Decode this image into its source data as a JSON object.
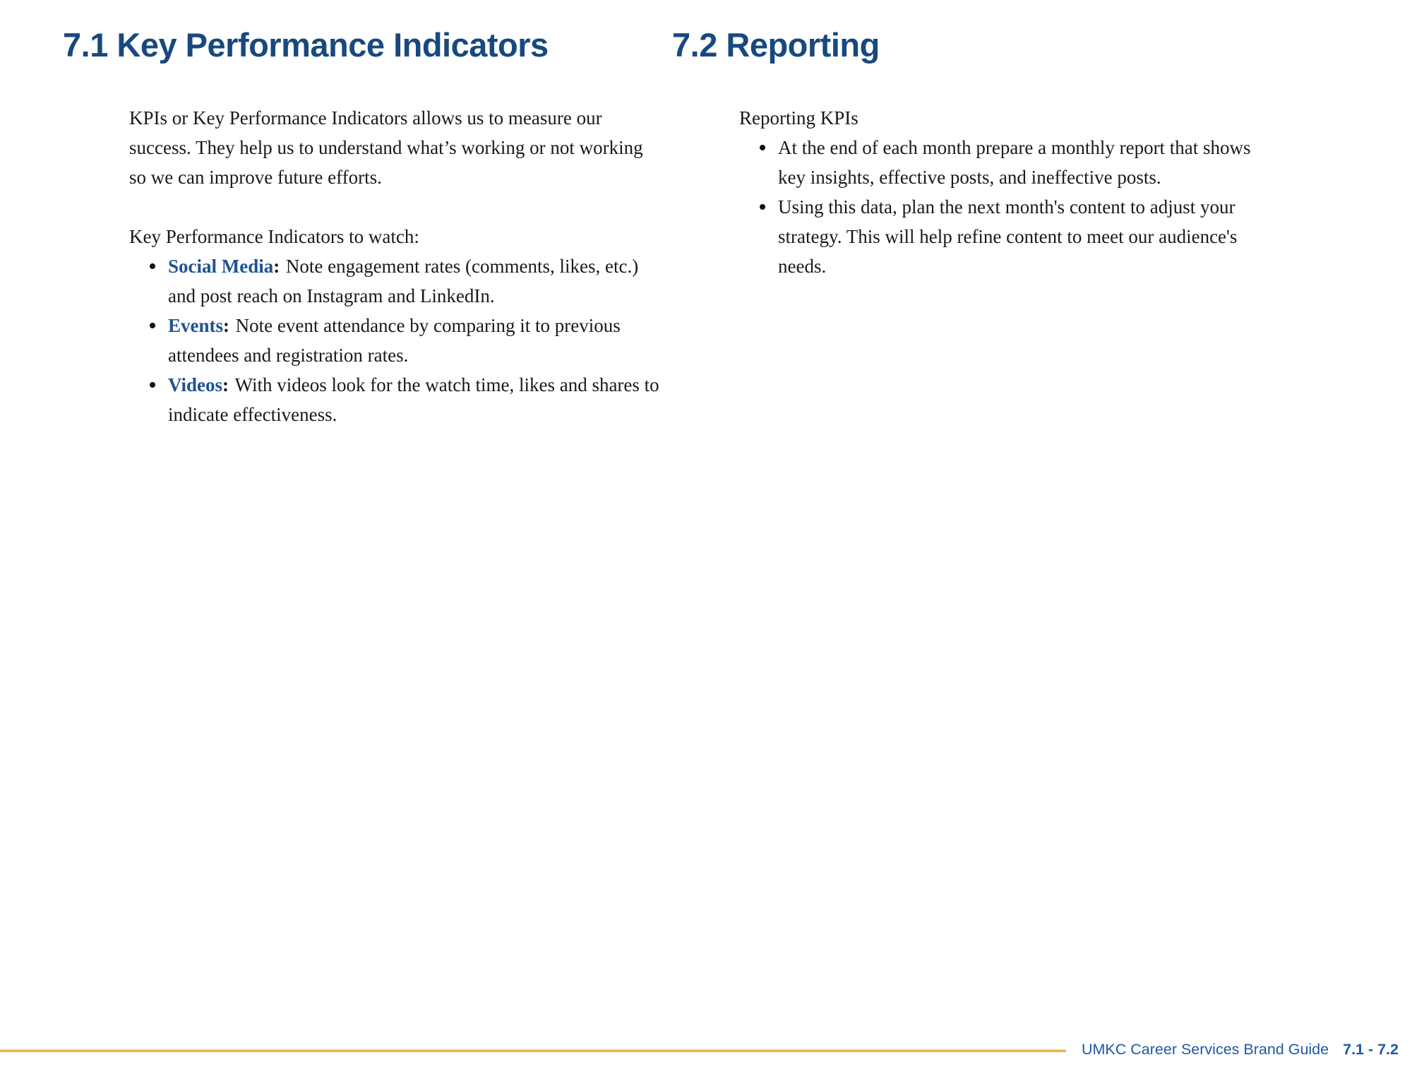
{
  "sections": [
    {
      "heading": "7.1 Key Performance Indicators",
      "intro": "KPIs or Key Performance Indicators allows us to measure our success. They help us to understand what’s working or not working so we can improve future efforts.",
      "list_label": "Key Performance Indicators to watch:",
      "bullets": [
        {
          "term": "Social Media",
          "sep": ":",
          "text": "Note engagement rates (comments, likes, etc.) and post reach on Instagram and LinkedIn."
        },
        {
          "term": "Events",
          "sep": ":",
          "text": "Note event attendance by comparing it to previous attendees and registration rates."
        },
        {
          "term": "Videos",
          "sep": ":",
          "text": "With videos look for the watch time, likes and shares to indicate effectiveness."
        }
      ]
    },
    {
      "heading": "7.2 Reporting",
      "intro": "Reporting KPIs",
      "bullets": [
        {
          "text": "At the end of each month prepare a monthly report that shows key insights, effective posts, and ineffective posts."
        },
        {
          "text": "Using this data, plan the next month's content to adjust your strategy. This will help refine content to meet our audience's needs."
        }
      ]
    }
  ],
  "footer": {
    "title": "UMKC Career Services Brand Guide",
    "pages": "7.1 - 7.2"
  },
  "colors": {
    "heading_blue": "#18497E",
    "term_blue": "#1E5291",
    "footer_blue": "#1D5AA4",
    "gold_rule": "#E6B94E",
    "body_text": "#1A1A1A"
  }
}
